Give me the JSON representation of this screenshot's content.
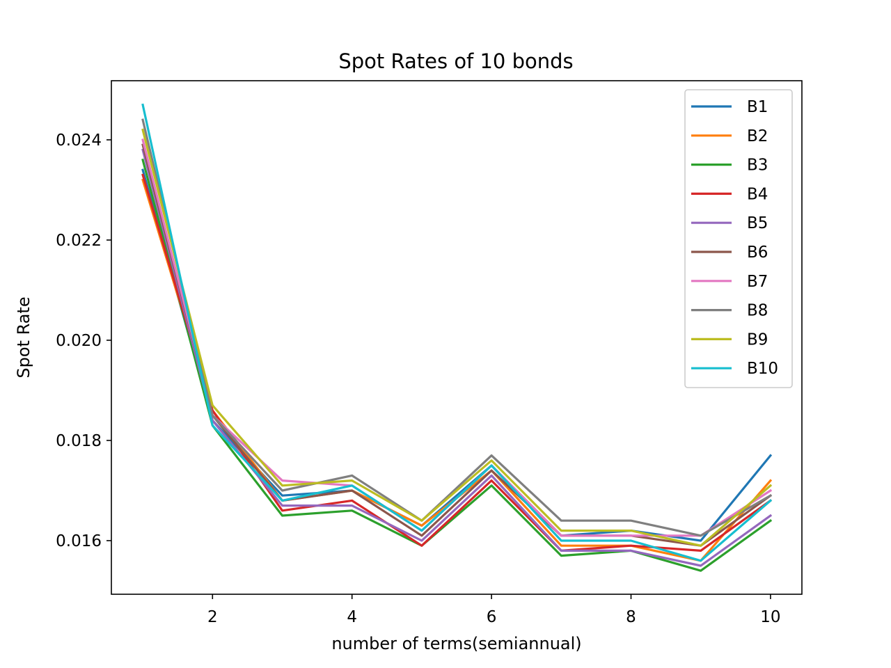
{
  "chart_data": {
    "type": "line",
    "title": "Spot Rates of 10 bonds",
    "xlabel": "number of terms(semiannual)",
    "ylabel": "Spot Rate",
    "x": [
      1,
      2,
      3,
      4,
      5,
      6,
      7,
      8,
      9,
      10
    ],
    "xlim": [
      0.55,
      10.45
    ],
    "ylim": [
      0.01493,
      0.02518
    ],
    "xticks": [
      2,
      4,
      6,
      8,
      10
    ],
    "yticks": [
      0.016,
      0.018,
      0.02,
      0.022,
      0.024
    ],
    "xtick_labels": [
      "2",
      "4",
      "6",
      "8",
      "10"
    ],
    "ytick_labels": [
      "0.016",
      "0.018",
      "0.020",
      "0.022",
      "0.024"
    ],
    "grid": false,
    "legend_position": "top-right",
    "series": [
      {
        "name": "B1",
        "color": "#1f77b4",
        "values": [
          0.0234,
          0.0184,
          0.0169,
          0.017,
          0.0163,
          0.0175,
          0.0161,
          0.0162,
          0.016,
          0.0177
        ]
      },
      {
        "name": "B2",
        "color": "#ff7f0e",
        "values": [
          0.0232,
          0.0186,
          0.0168,
          0.017,
          0.0163,
          0.0174,
          0.0159,
          0.0159,
          0.0156,
          0.0172
        ]
      },
      {
        "name": "B3",
        "color": "#2ca02c",
        "values": [
          0.0236,
          0.0183,
          0.0165,
          0.0166,
          0.0159,
          0.0171,
          0.0157,
          0.0158,
          0.0154,
          0.0164
        ]
      },
      {
        "name": "B4",
        "color": "#d62728",
        "values": [
          0.0233,
          0.0186,
          0.0166,
          0.0168,
          0.0159,
          0.0172,
          0.0158,
          0.0159,
          0.0158,
          0.0168
        ]
      },
      {
        "name": "B5",
        "color": "#9467bd",
        "values": [
          0.0238,
          0.0184,
          0.0167,
          0.0167,
          0.016,
          0.0173,
          0.0158,
          0.0158,
          0.0155,
          0.0165
        ]
      },
      {
        "name": "B6",
        "color": "#8c564b",
        "values": [
          0.0239,
          0.0185,
          0.0168,
          0.017,
          0.0161,
          0.0174,
          0.0161,
          0.0161,
          0.0159,
          0.0169
        ]
      },
      {
        "name": "B7",
        "color": "#e377c2",
        "values": [
          0.024,
          0.0185,
          0.0172,
          0.0171,
          0.0162,
          0.0175,
          0.0161,
          0.0161,
          0.0161,
          0.017
        ]
      },
      {
        "name": "B8",
        "color": "#7f7f7f",
        "values": [
          0.0244,
          0.0185,
          0.017,
          0.0173,
          0.0164,
          0.0177,
          0.0164,
          0.0164,
          0.0161,
          0.0169
        ]
      },
      {
        "name": "B9",
        "color": "#bcbd22",
        "values": [
          0.0242,
          0.0187,
          0.0171,
          0.0172,
          0.0164,
          0.0176,
          0.0162,
          0.0162,
          0.0159,
          0.0171
        ]
      },
      {
        "name": "B10",
        "color": "#17becf",
        "values": [
          0.0247,
          0.0183,
          0.0168,
          0.0171,
          0.0162,
          0.0175,
          0.016,
          0.016,
          0.0156,
          0.0168
        ]
      }
    ]
  }
}
